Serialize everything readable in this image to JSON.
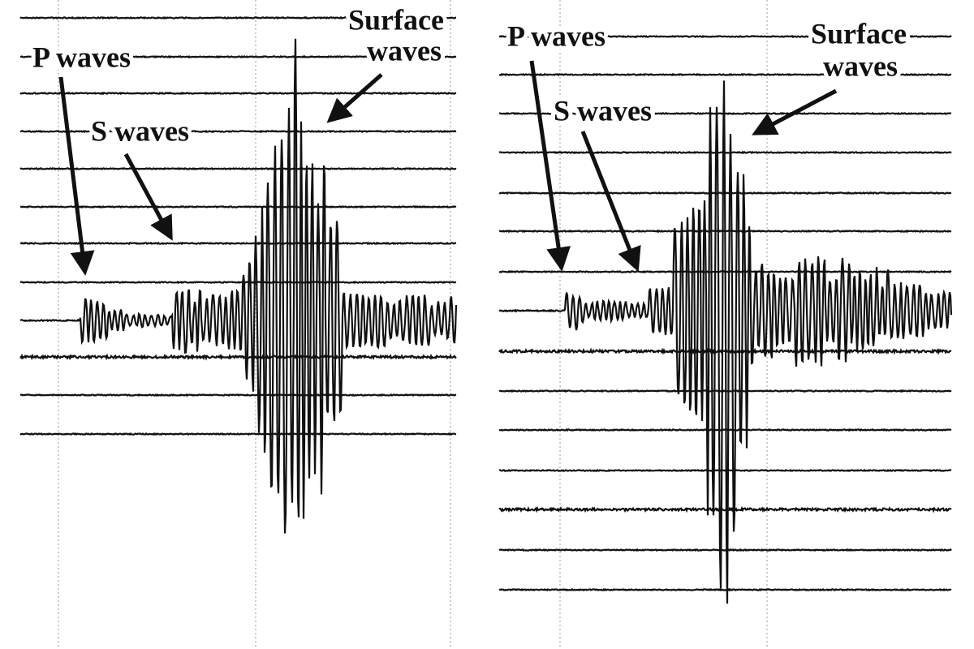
{
  "panels": [
    {
      "p_label": "P waves",
      "s_label": "S waves",
      "surface_label": [
        "Surface",
        "waves"
      ]
    },
    {
      "p_label": "P waves",
      "s_label": "S waves",
      "surface_label": [
        "Surface",
        "waves"
      ]
    }
  ]
}
